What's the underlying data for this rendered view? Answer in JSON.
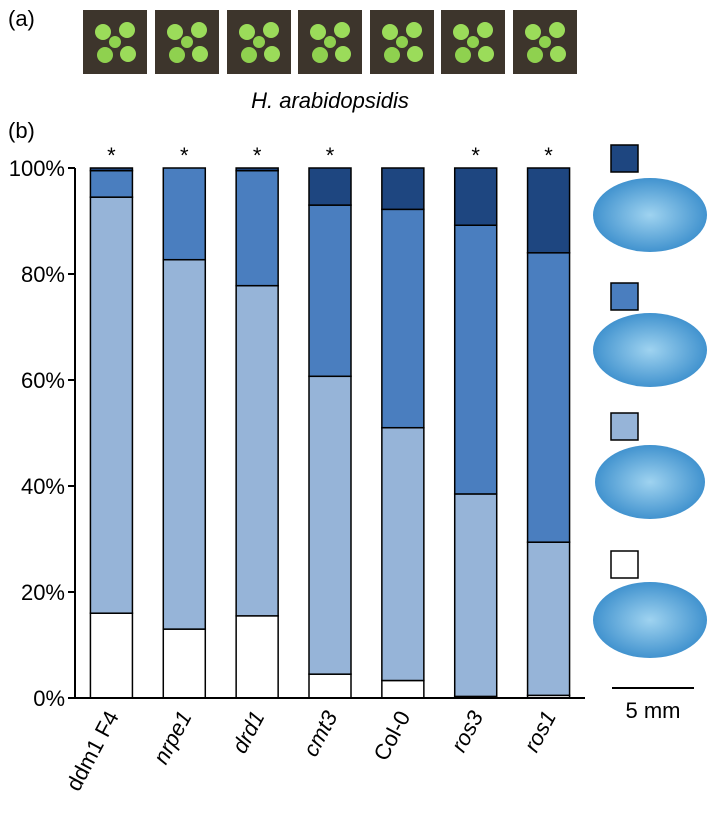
{
  "panel_a": {
    "label": "(a)",
    "caption": "H. arabidopsidis"
  },
  "chart_data": {
    "type": "stacked_bar",
    "panel_label": "(b)",
    "categories": [
      "ddm1 F4",
      "nrpe1",
      "drd1",
      "cmt3",
      "Col-0",
      "ros3",
      "ros1"
    ],
    "category_styles": [
      "normal",
      "italic",
      "italic",
      "italic",
      "normal",
      "italic",
      "italic"
    ],
    "annotations": [
      "*",
      "*",
      "*",
      "*",
      null,
      "*",
      "*"
    ],
    "series": [
      {
        "color": "#ffffff",
        "values": [
          16,
          13,
          15.5,
          4.5,
          3.3,
          0.3,
          0.5
        ]
      },
      {
        "color": "#96b4d8",
        "values": [
          78.5,
          69.7,
          62.3,
          56.2,
          47.7,
          38.2,
          28.9
        ]
      },
      {
        "color": "#4a7ebf",
        "values": [
          5,
          17.3,
          21.7,
          32.3,
          41.2,
          50.7,
          54.6
        ]
      },
      {
        "color": "#1e4680",
        "values": [
          0.5,
          0,
          0.5,
          7,
          7.8,
          10.8,
          16
        ]
      }
    ],
    "ylim": [
      0,
      100
    ],
    "yticks": [
      {
        "value": 0,
        "label": "0%"
      },
      {
        "value": 20,
        "label": "20%"
      },
      {
        "value": 40,
        "label": "40%"
      },
      {
        "value": 60,
        "label": "60%"
      },
      {
        "value": 80,
        "label": "80%"
      },
      {
        "value": 100,
        "label": "100%"
      }
    ],
    "scale_bar_label": "5 mm"
  }
}
